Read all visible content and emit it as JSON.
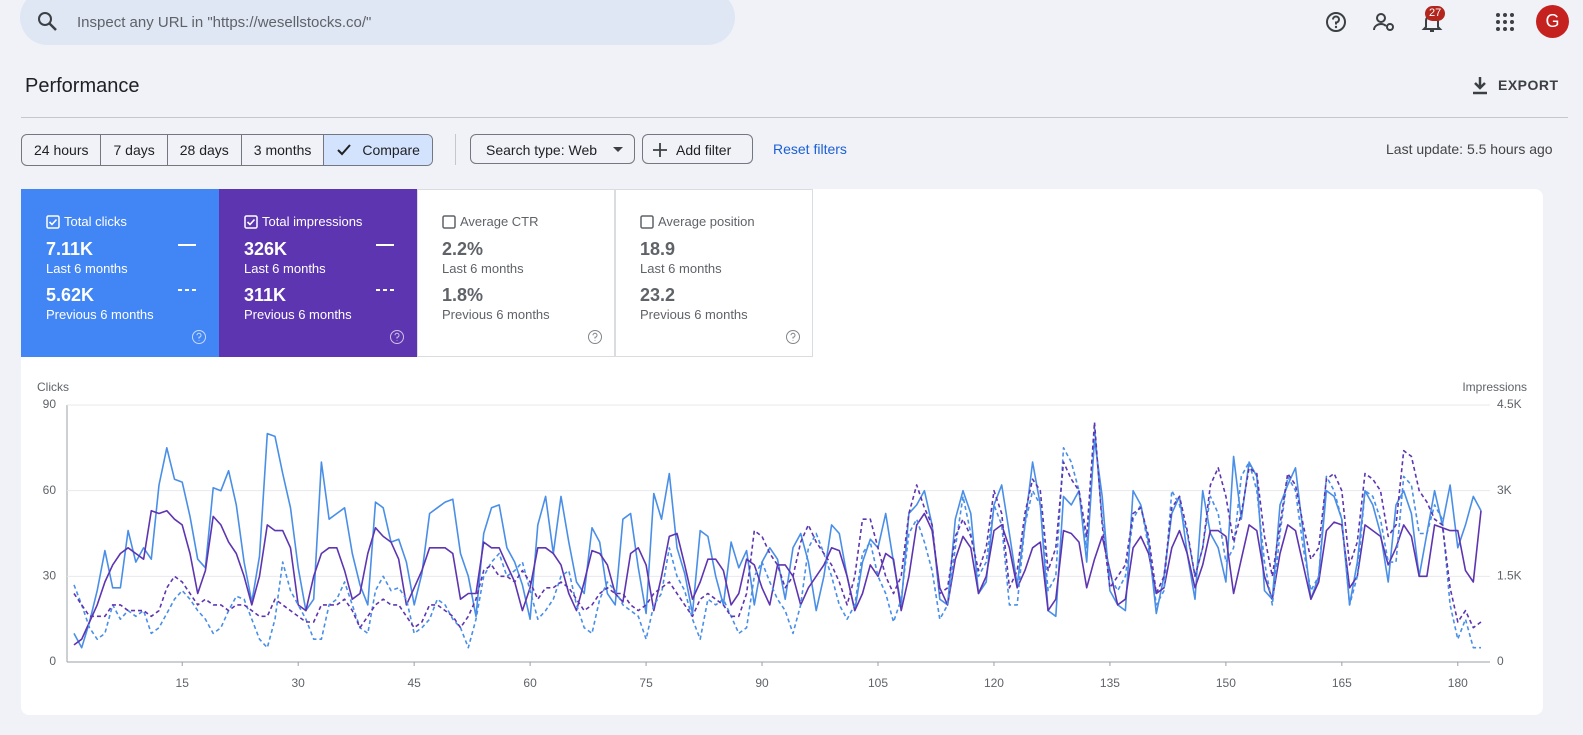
{
  "search_placeholder": "Inspect any URL in \"https://wesellstocks.co/\"",
  "notification_count": "27",
  "avatar": "G",
  "title": "Performance",
  "export": "EXPORT",
  "date_ranges": [
    "24 hours",
    "7 days",
    "28 days",
    "3 months"
  ],
  "compare": "Compare",
  "search_type": "Search type: Web",
  "add_filter": "Add filter",
  "reset_filters": "Reset filters",
  "last_update": "Last update: 5.5 hours ago",
  "metrics": [
    {
      "name": "Total clicks",
      "checked": true,
      "color": "#4285f4",
      "current": "7.11K",
      "current_label": "Last 6 months",
      "previous": "5.62K",
      "previous_label": "Previous 6 months"
    },
    {
      "name": "Total impressions",
      "checked": true,
      "color": "#5e35b1",
      "current": "326K",
      "current_label": "Last 6 months",
      "previous": "311K",
      "previous_label": "Previous 6 months"
    },
    {
      "name": "Average CTR",
      "checked": false,
      "color": "#ffffff",
      "current": "2.2%",
      "current_label": "Last 6 months",
      "previous": "1.8%",
      "previous_label": "Previous 6 months"
    },
    {
      "name": "Average position",
      "checked": false,
      "color": "#ffffff",
      "current": "18.9",
      "current_label": "Last 6 months",
      "previous": "23.2",
      "previous_label": "Previous 6 months"
    }
  ],
  "chart_data": {
    "type": "line",
    "y_label": "Clicks",
    "y2_label": "Impressions",
    "x": [
      1,
      2,
      3,
      4,
      5,
      6,
      7,
      8,
      9,
      10,
      11,
      12,
      13,
      14,
      15,
      16,
      17,
      18,
      19,
      20,
      21,
      22,
      23,
      24,
      25,
      26,
      27,
      28,
      29,
      30,
      31,
      32,
      33,
      34,
      35,
      36,
      37,
      38,
      39,
      40,
      41,
      42,
      43,
      44,
      45,
      46,
      47,
      48,
      49,
      50,
      51,
      52,
      53,
      54,
      55,
      56,
      57,
      58,
      59,
      60,
      61,
      62,
      63,
      64,
      65,
      66,
      67,
      68,
      69,
      70,
      71,
      72,
      73,
      74,
      75,
      76,
      77,
      78,
      79,
      80,
      81,
      82,
      83,
      84,
      85,
      86,
      87,
      88,
      89,
      90,
      91,
      92,
      93,
      94,
      95,
      96,
      97,
      98,
      99,
      100,
      101,
      102,
      103,
      104,
      105,
      106,
      107,
      108,
      109,
      110,
      111,
      112,
      113,
      114,
      115,
      116,
      117,
      118,
      119,
      120,
      121,
      122,
      123,
      124,
      125,
      126,
      127,
      128,
      129,
      130,
      131,
      132,
      133,
      134,
      135,
      136,
      137,
      138,
      139,
      140,
      141,
      142,
      143,
      144,
      145,
      146,
      147,
      148,
      149,
      150,
      151,
      152,
      153,
      154,
      155,
      156,
      157,
      158,
      159,
      160,
      161,
      162,
      163,
      164,
      165,
      166,
      167,
      168,
      169,
      170,
      171,
      172,
      173,
      174,
      175,
      176,
      177,
      178,
      179,
      180,
      181,
      182,
      183
    ],
    "xlim": [
      1,
      183
    ],
    "xticks": [
      15,
      30,
      45,
      60,
      75,
      90,
      105,
      120,
      135,
      150,
      165,
      180
    ],
    "ylim": [
      0,
      90
    ],
    "yticks": [
      0,
      30,
      60,
      90
    ],
    "y2lim": [
      0,
      4500
    ],
    "y2ticks": [
      0,
      {
        "value": 1500,
        "label": "1.5K"
      },
      {
        "value": 3000,
        "label": "3K"
      },
      {
        "value": 4500,
        "label": "4.5K"
      }
    ],
    "grid": true,
    "series": [
      {
        "color": "#4a8fe7",
        "dashed": false,
        "values": [
          10,
          5,
          14,
          25,
          39,
          26,
          26,
          46,
          35,
          40,
          36,
          62,
          75,
          64,
          63,
          51,
          36,
          33,
          61,
          60,
          67,
          55,
          35,
          21,
          37,
          80,
          79,
          66,
          54,
          33,
          18,
          22,
          70,
          50,
          52,
          54,
          38,
          27,
          20,
          56,
          54,
          42,
          43,
          35,
          20,
          31,
          52,
          54,
          56,
          57,
          38,
          30,
          16,
          45,
          54,
          55,
          40,
          35,
          27,
          15,
          48,
          58,
          38,
          58,
          42,
          28,
          24,
          47,
          42,
          24,
          20,
          50,
          52,
          33,
          17,
          59,
          50,
          66,
          40,
          31,
          17,
          46,
          44,
          30,
          20,
          42,
          33,
          39,
          20,
          35,
          40,
          36,
          22,
          40,
          45,
          35,
          18,
          30,
          48,
          45,
          30,
          18,
          35,
          43,
          40,
          52,
          35,
          20,
          52,
          55,
          60,
          48,
          22,
          20,
          50,
          60,
          52,
          24,
          28,
          55,
          62,
          45,
          27,
          48,
          70,
          55,
          18,
          16,
          58,
          55,
          60,
          35,
          78,
          58,
          25,
          20,
          18,
          60,
          55,
          42,
          17,
          30,
          52,
          58,
          38,
          22,
          60,
          45,
          40,
          28,
          72,
          50,
          70,
          65,
          25,
          22,
          55,
          62,
          68,
          45,
          22,
          30,
          60,
          58,
          50,
          20,
          35,
          60,
          55,
          45,
          28,
          55,
          60,
          52,
          30,
          45,
          60,
          48,
          62,
          40,
          48,
          58,
          53
        ]
      },
      {
        "color": "#5e35b1",
        "dashed": false,
        "axis": "y2",
        "values": [
          300,
          400,
          700,
          1000,
          1400,
          1700,
          1900,
          2000,
          1900,
          1800,
          2650,
          2600,
          2650,
          2500,
          2400,
          1900,
          1200,
          1600,
          2550,
          2400,
          2100,
          1900,
          1500,
          1000,
          1500,
          2400,
          2300,
          2300,
          2000,
          1000,
          900,
          1500,
          1900,
          2000,
          2000,
          1600,
          1100,
          1200,
          1900,
          2350,
          2200,
          2100,
          1800,
          1000,
          1300,
          1600,
          2000,
          2000,
          2000,
          1900,
          1100,
          1200,
          1200,
          2100,
          2000,
          2000,
          1700,
          1400,
          900,
          1300,
          2000,
          2000,
          1900,
          1700,
          1200,
          900,
          1400,
          1950,
          1900,
          1700,
          1200,
          1050,
          1900,
          2000,
          1700,
          900,
          1500,
          2200,
          2250,
          1700,
          1100,
          1400,
          1800,
          1800,
          1600,
          1000,
          1200,
          1800,
          1700,
          1300,
          1000,
          1700,
          1700,
          1500,
          1000,
          1300,
          1500,
          1700,
          2000,
          1950,
          1500,
          900,
          1200,
          1700,
          1500,
          1900,
          1800,
          900,
          1500,
          2400,
          2600,
          2300,
          1300,
          1000,
          1800,
          2200,
          2000,
          1200,
          1500,
          2300,
          2400,
          2000,
          1300,
          1600,
          2000,
          2100,
          900,
          1100,
          2300,
          2250,
          2100,
          1300,
          1800,
          2200,
          1600,
          1000,
          1100,
          2000,
          2200,
          1900,
          1200,
          1300,
          2000,
          2300,
          1900,
          1300,
          1700,
          2300,
          2300,
          2200,
          1200,
          1800,
          2400,
          2300,
          1500,
          1100,
          1900,
          2400,
          2300,
          1700,
          1100,
          1400,
          2300,
          2450,
          2400,
          1300,
          1500,
          2400,
          2300,
          2200,
          1700,
          2000,
          2400,
          2200,
          1500,
          1500,
          2400,
          2350,
          2300,
          2300,
          1600,
          1400,
          2650
        ]
      },
      {
        "color": "#4a8fe7",
        "dashed": true,
        "values": [
          27,
          20,
          12,
          8,
          10,
          20,
          15,
          18,
          16,
          18,
          10,
          12,
          17,
          22,
          25,
          22,
          18,
          15,
          10,
          12,
          18,
          23,
          22,
          15,
          8,
          5,
          15,
          35,
          25,
          20,
          15,
          8,
          8,
          20,
          22,
          28,
          20,
          12,
          10,
          25,
          30,
          25,
          26,
          22,
          10,
          12,
          15,
          22,
          20,
          15,
          12,
          5,
          15,
          30,
          35,
          38,
          30,
          32,
          35,
          25,
          15,
          18,
          22,
          30,
          32,
          20,
          12,
          10,
          22,
          28,
          25,
          20,
          18,
          16,
          8,
          20,
          24,
          40,
          30,
          25,
          15,
          8,
          22,
          20,
          22,
          16,
          10,
          12,
          30,
          35,
          28,
          22,
          18,
          10,
          20,
          40,
          45,
          38,
          30,
          20,
          15,
          20,
          38,
          42,
          30,
          24,
          14,
          22,
          45,
          50,
          42,
          32,
          15,
          20,
          40,
          58,
          45,
          30,
          35,
          55,
          48,
          20,
          20,
          48,
          60,
          55,
          25,
          30,
          75,
          70,
          60,
          40,
          82,
          50,
          30,
          25,
          30,
          50,
          55,
          40,
          20,
          25,
          60,
          55,
          45,
          30,
          40,
          58,
          52,
          35,
          40,
          65,
          70,
          60,
          35,
          20,
          45,
          65,
          60,
          40,
          25,
          30,
          65,
          60,
          50,
          20,
          30,
          60,
          58,
          50,
          35,
          35,
          65,
          62,
          45,
          45,
          55,
          50,
          20,
          8,
          15,
          5,
          5
        ]
      },
      {
        "color": "#5e35b1",
        "dashed": true,
        "axis": "y2",
        "values": [
          1200,
          1000,
          800,
          800,
          800,
          1000,
          1000,
          900,
          900,
          900,
          800,
          900,
          1300,
          1500,
          1400,
          1200,
          1000,
          1100,
          1000,
          1000,
          900,
          1000,
          1000,
          900,
          800,
          800,
          1100,
          1000,
          900,
          800,
          700,
          700,
          1000,
          1000,
          1000,
          1100,
          900,
          600,
          800,
          1000,
          1100,
          1000,
          1000,
          800,
          600,
          700,
          1000,
          1000,
          900,
          800,
          600,
          800,
          1100,
          1600,
          1700,
          1500,
          1500,
          1400,
          1600,
          1400,
          1100,
          1300,
          1300,
          1400,
          1300,
          1100,
          900,
          1000,
          1200,
          1300,
          1200,
          1200,
          1000,
          900,
          1000,
          1200,
          1300,
          1400,
          1200,
          1000,
          800,
          1100,
          1200,
          1100,
          1000,
          800,
          800,
          1200,
          2300,
          2200,
          1900,
          1700,
          1300,
          1500,
          2100,
          2400,
          2100,
          1900,
          1700,
          1400,
          1000,
          1500,
          2500,
          2500,
          2000,
          1500,
          1200,
          1500,
          2600,
          3100,
          2700,
          2400,
          1200,
          1300,
          2200,
          2500,
          2200,
          1600,
          2000,
          3000,
          2600,
          1300,
          1600,
          2600,
          3200,
          3000,
          1600,
          2000,
          3500,
          3200,
          3000,
          2200,
          4200,
          2400,
          1300,
          1500,
          1700,
          2600,
          2700,
          2200,
          1200,
          1500,
          2700,
          2900,
          2300,
          1500,
          2000,
          3100,
          3400,
          2900,
          2100,
          2600,
          3400,
          3300,
          2200,
          1500,
          2400,
          3300,
          3100,
          2400,
          1800,
          2000,
          3200,
          3300,
          3000,
          1700,
          2100,
          3300,
          3200,
          3000,
          2200,
          2400,
          3700,
          3600,
          3000,
          2800,
          2500,
          2400,
          1300,
          700,
          900,
          600,
          700
        ]
      }
    ]
  }
}
